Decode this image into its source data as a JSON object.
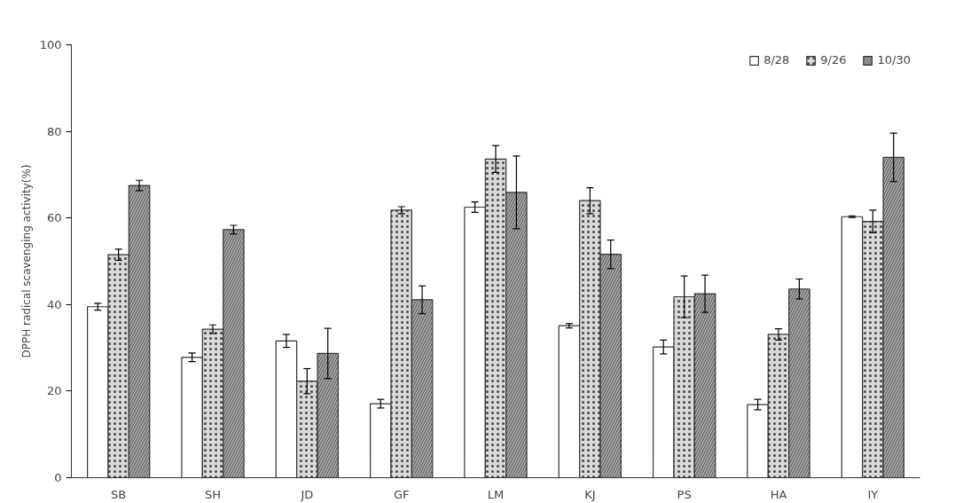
{
  "chart_data": {
    "type": "bar",
    "ylabel": "DPPH radical scavenging activity(%)",
    "categories": [
      "SB",
      "SH",
      "JD",
      "GF",
      "LM",
      "KJ",
      "PS",
      "HA",
      "IY"
    ],
    "series": [
      {
        "name": "8/28",
        "color": "#ffffff",
        "values": [
          39.5,
          27.8,
          31.6,
          17.1,
          62.5,
          35.1,
          30.2,
          16.9,
          60.3
        ],
        "errors": [
          0.8,
          1.0,
          1.5,
          1.0,
          1.2,
          0.5,
          1.6,
          1.2,
          0.2
        ]
      },
      {
        "name": "9/26",
        "color": "#d9d9d9",
        "values": [
          51.5,
          34.3,
          22.3,
          61.8,
          73.6,
          64.0,
          41.8,
          33.1,
          59.2
        ],
        "errors": [
          1.3,
          1.0,
          2.9,
          0.8,
          3.1,
          3.0,
          4.8,
          1.3,
          2.6
        ]
      },
      {
        "name": "10/30",
        "color": "#a6a6a6",
        "values": [
          67.5,
          57.3,
          28.7,
          41.1,
          65.9,
          51.6,
          42.5,
          43.6,
          74.0
        ],
        "errors": [
          1.2,
          1.0,
          5.8,
          3.2,
          8.4,
          3.3,
          4.3,
          2.3,
          5.6
        ]
      }
    ],
    "ylim": [
      0,
      100
    ],
    "yticks": [
      0,
      20,
      40,
      60,
      80,
      100
    ],
    "grid": false,
    "legend": "top right"
  }
}
